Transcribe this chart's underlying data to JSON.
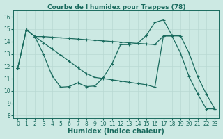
{
  "title": "Courbe de l'humidex pour Trappes (78)",
  "xlabel": "Humidex (Indice chaleur)",
  "xlim": [
    -0.5,
    23.5
  ],
  "ylim": [
    7.8,
    16.5
  ],
  "yticks": [
    8,
    9,
    10,
    11,
    12,
    13,
    14,
    15,
    16
  ],
  "xticks": [
    0,
    1,
    2,
    3,
    4,
    5,
    6,
    7,
    8,
    9,
    10,
    11,
    12,
    13,
    14,
    15,
    16,
    17,
    18,
    19,
    20,
    21,
    22,
    23
  ],
  "bg_color": "#cce9e3",
  "line_color": "#1a6b5e",
  "grid_color": "#b8d8d2",
  "lineA_x": [
    0,
    1,
    2,
    3,
    4,
    5,
    6,
    7,
    8,
    9,
    10,
    11,
    12,
    13,
    14,
    15,
    16,
    17,
    18,
    19
  ],
  "lineA_y": [
    11.85,
    14.95,
    14.4,
    14.4,
    14.35,
    14.3,
    14.25,
    14.2,
    14.15,
    14.1,
    14.05,
    14.0,
    13.95,
    13.9,
    13.85,
    13.8,
    13.75,
    14.45,
    14.45,
    14.45
  ],
  "lineB_x": [
    0,
    1,
    2,
    3,
    4,
    5,
    6,
    7,
    8,
    9,
    10,
    11,
    12,
    13,
    14,
    15,
    16,
    17,
    18,
    19,
    20,
    21,
    22,
    23
  ],
  "lineB_y": [
    11.85,
    14.95,
    14.4,
    12.95,
    11.25,
    10.3,
    10.35,
    10.65,
    10.35,
    10.4,
    11.1,
    12.2,
    13.75,
    13.75,
    13.85,
    14.5,
    15.55,
    15.75,
    14.5,
    14.45,
    13.05,
    11.15,
    9.75,
    8.55
  ],
  "lineC_x": [
    0,
    1,
    2,
    3,
    4,
    5,
    6,
    7,
    8,
    9,
    10,
    11,
    12,
    13,
    14,
    15,
    16,
    17,
    18,
    19,
    20,
    21,
    22,
    23
  ],
  "lineC_y": [
    11.85,
    14.95,
    14.4,
    13.9,
    13.4,
    12.9,
    12.4,
    11.9,
    11.4,
    11.1,
    11.0,
    10.9,
    10.8,
    10.7,
    10.6,
    10.5,
    10.3,
    14.45,
    14.45,
    13.05,
    11.15,
    9.75,
    8.55,
    8.55
  ],
  "title_fontsize": 6.5,
  "axis_fontsize": 7,
  "tick_fontsize": 5.5
}
